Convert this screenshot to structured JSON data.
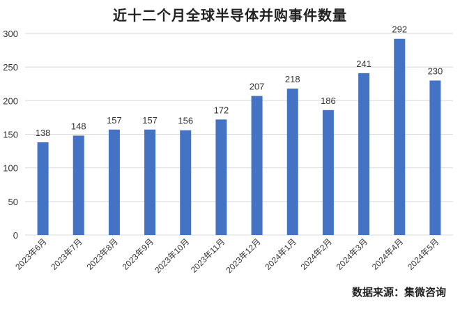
{
  "chart_data": {
    "type": "bar",
    "title": "近十二个月全球半导体并购事件数量",
    "categories": [
      "2023年6月",
      "2023年7月",
      "2023年8月",
      "2023年9月",
      "2023年10月",
      "2023年11月",
      "2023年12月",
      "2024年1月",
      "2024年2月",
      "2024年3月",
      "2024年4月",
      "2024年5月"
    ],
    "series": [
      {
        "values": [
          138,
          148,
          157,
          157,
          156,
          172,
          207,
          218,
          186,
          241,
          292,
          230
        ]
      }
    ],
    "ylim": [
      0,
      300
    ],
    "yticks": [
      0,
      50,
      100,
      150,
      200,
      250,
      300
    ],
    "grid": true,
    "xlabel": "",
    "ylabel": "",
    "bar_color": "#4472c4",
    "grid_color": "#d9d9d9"
  },
  "footer": {
    "source": "数据来源：集微咨询"
  }
}
